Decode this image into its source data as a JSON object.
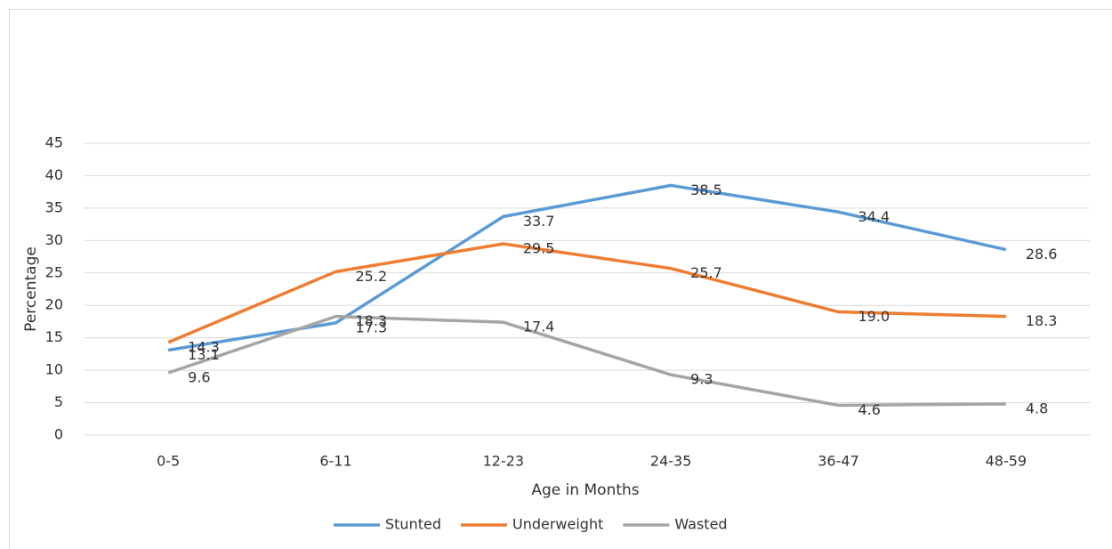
{
  "chart_data": {
    "type": "line",
    "x_label": "Age in Months",
    "y_label": "Percentage",
    "categories": [
      "0-5",
      "6-11",
      "12-23",
      "24-35",
      "36-47",
      "48-59"
    ],
    "series": [
      {
        "name": "Stunted",
        "color": "#5b9bd5",
        "values": [
          13.1,
          17.3,
          33.7,
          38.5,
          34.4,
          28.6
        ],
        "value_labels": [
          "13.1",
          "17.3",
          "33.7",
          "38.5",
          "34.4",
          "28.6"
        ]
      },
      {
        "name": "Underweight",
        "color": "#ed7d31",
        "values": [
          14.3,
          25.2,
          29.5,
          25.7,
          19.0,
          18.3
        ],
        "value_labels": [
          "14.3",
          "25.2",
          "29.5",
          "25.7",
          "19.0",
          "18.3"
        ]
      },
      {
        "name": "Wasted",
        "color": "#a5a5a5",
        "values": [
          9.6,
          18.3,
          17.4,
          9.3,
          4.6,
          4.8
        ],
        "value_labels": [
          "9.6",
          "18.3",
          "17.4",
          "9.3",
          "4.6",
          "4.8"
        ]
      }
    ],
    "ylim": [
      0,
      45
    ],
    "yticks": [
      0,
      5,
      10,
      15,
      20,
      25,
      30,
      35,
      40,
      45
    ],
    "grid": true,
    "legend": "bottom"
  }
}
